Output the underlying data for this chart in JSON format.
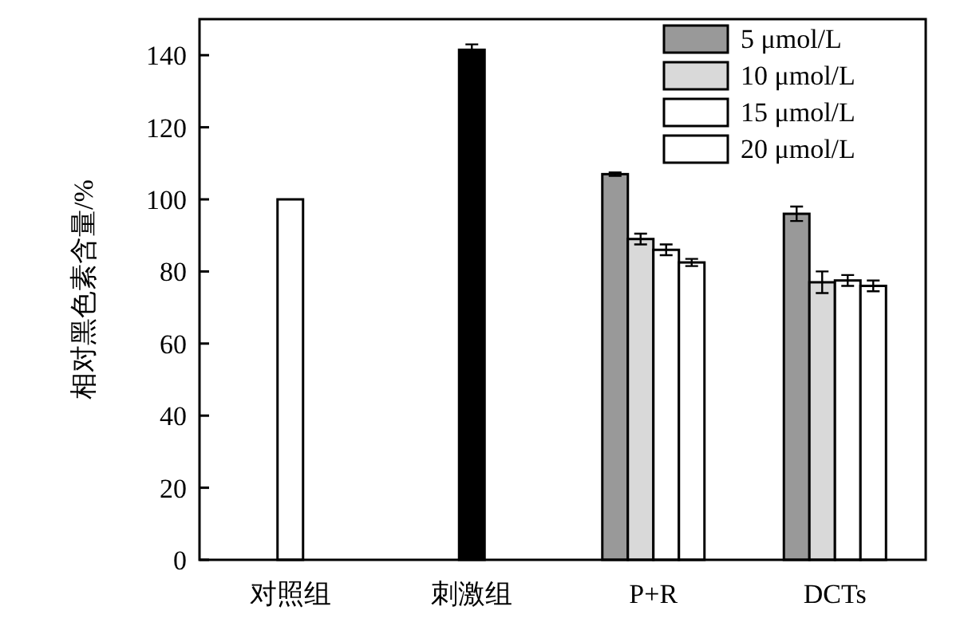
{
  "chart_data": {
    "type": "bar",
    "ylabel": "相对黑色素含量/%",
    "categories": [
      "对照组",
      "刺激组",
      "P+R",
      "DCTs"
    ],
    "series": [
      {
        "color": "#ffffff",
        "values": [
          100,
          null,
          null,
          null
        ]
      },
      {
        "color": "#000000",
        "values": [
          null,
          141.5,
          null,
          null
        ],
        "errors": [
          null,
          1.5,
          null,
          null
        ]
      },
      {
        "name": "5 μmol/L",
        "color": "#999999",
        "values": [
          null,
          null,
          107,
          96
        ],
        "errors": [
          null,
          null,
          0.5,
          2
        ]
      },
      {
        "name": "10 μmol/L",
        "color": "#d9d9d9",
        "values": [
          null,
          null,
          89,
          77
        ],
        "errors": [
          null,
          null,
          1.5,
          3
        ]
      },
      {
        "name": "15 μmol/L",
        "color": "#ffffff",
        "values": [
          null,
          null,
          86,
          77.5
        ],
        "errors": [
          null,
          null,
          1.5,
          1.5
        ]
      },
      {
        "name": "20 μmol/L",
        "color": "#ffffff",
        "values": [
          null,
          null,
          82.5,
          76
        ],
        "errors": [
          null,
          null,
          1,
          1.5
        ]
      }
    ],
    "ylim": [
      0,
      150
    ],
    "yticks": [
      0,
      20,
      40,
      60,
      80,
      100,
      120,
      140
    ],
    "grid": false,
    "legend": "top right"
  }
}
